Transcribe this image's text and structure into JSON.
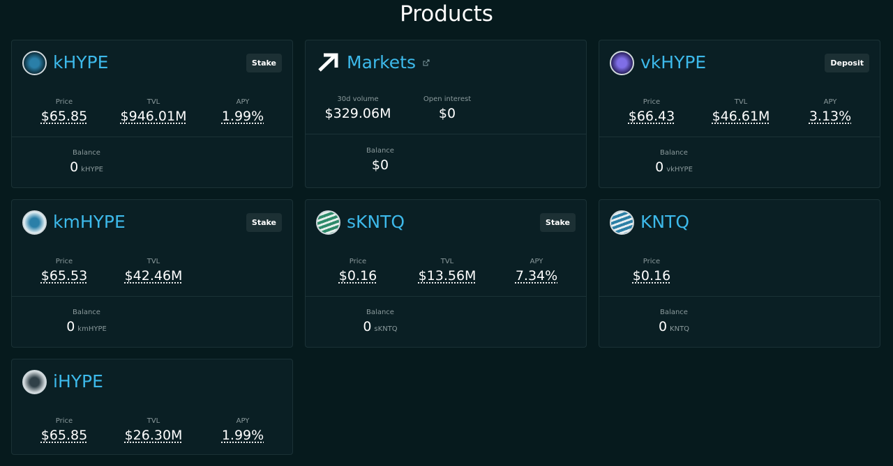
{
  "title": "Products",
  "products": [
    {
      "name": "kHYPE",
      "action": "Stake",
      "stats": [
        {
          "label": "Price",
          "value": "$65.85"
        },
        {
          "label": "TVL",
          "value": "$946.01M"
        },
        {
          "label": "APY",
          "value": "1.99%"
        }
      ],
      "balance": {
        "label": "Balance",
        "value": "0",
        "unit": "kHYPE"
      }
    },
    {
      "name": "Markets",
      "stats": [
        {
          "label": "30d volume",
          "value": "$329.06M"
        },
        {
          "label": "Open interest",
          "value": "$0"
        }
      ],
      "balance": {
        "label": "Balance",
        "value": "$0"
      }
    },
    {
      "name": "vkHYPE",
      "action": "Deposit",
      "stats": [
        {
          "label": "Price",
          "value": "$66.43"
        },
        {
          "label": "TVL",
          "value": "$46.61M"
        },
        {
          "label": "APY",
          "value": "3.13%"
        }
      ],
      "balance": {
        "label": "Balance",
        "value": "0",
        "unit": "vkHYPE"
      }
    },
    {
      "name": "kmHYPE",
      "action": "Stake",
      "stats": [
        {
          "label": "Price",
          "value": "$65.53"
        },
        {
          "label": "TVL",
          "value": "$42.46M"
        }
      ],
      "balance": {
        "label": "Balance",
        "value": "0",
        "unit": "kmHYPE"
      }
    },
    {
      "name": "sKNTQ",
      "action": "Stake",
      "stats": [
        {
          "label": "Price",
          "value": "$0.16"
        },
        {
          "label": "TVL",
          "value": "$13.56M"
        },
        {
          "label": "APY",
          "value": "7.34%"
        }
      ],
      "balance": {
        "label": "Balance",
        "value": "0",
        "unit": "sKNTQ"
      }
    },
    {
      "name": "KNTQ",
      "stats": [
        {
          "label": "Price",
          "value": "$0.16"
        }
      ],
      "balance": {
        "label": "Balance",
        "value": "0",
        "unit": "KNTQ"
      }
    },
    {
      "name": "iHYPE",
      "stats": [
        {
          "label": "Price",
          "value": "$65.85"
        },
        {
          "label": "TVL",
          "value": "$26.30M"
        },
        {
          "label": "APY",
          "value": "1.99%"
        }
      ]
    }
  ]
}
